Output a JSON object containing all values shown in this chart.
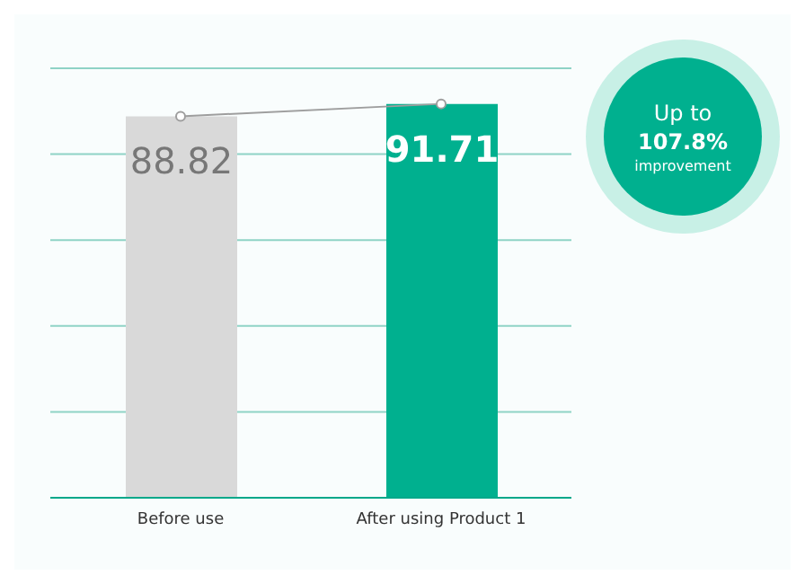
{
  "chart_data": {
    "type": "bar",
    "categories": [
      "Before use",
      "After using Product 1"
    ],
    "series": [
      {
        "colors": [
          "#d9d9d9",
          "#00b08f"
        ],
        "values": [
          88.82,
          91.71
        ],
        "value_labels": [
          "88.82",
          "91.71"
        ]
      },
      {
        "type": "line",
        "color": "#9e9e9e",
        "values": [
          88.82,
          91.71
        ],
        "marker": "circle"
      }
    ],
    "ylim": [
      0,
      100
    ],
    "yticks": [
      {
        "value": 0,
        "label": null
      },
      {
        "value": 20,
        "label": null
      },
      {
        "value": 40,
        "label": null
      },
      {
        "value": 60,
        "label": null
      },
      {
        "value": 80,
        "label": null
      },
      {
        "value": 100,
        "label": null
      }
    ],
    "tick_labels": "x",
    "grid": "y",
    "annotations": [
      "Up to",
      "107.8%",
      "improvement"
    ]
  }
}
